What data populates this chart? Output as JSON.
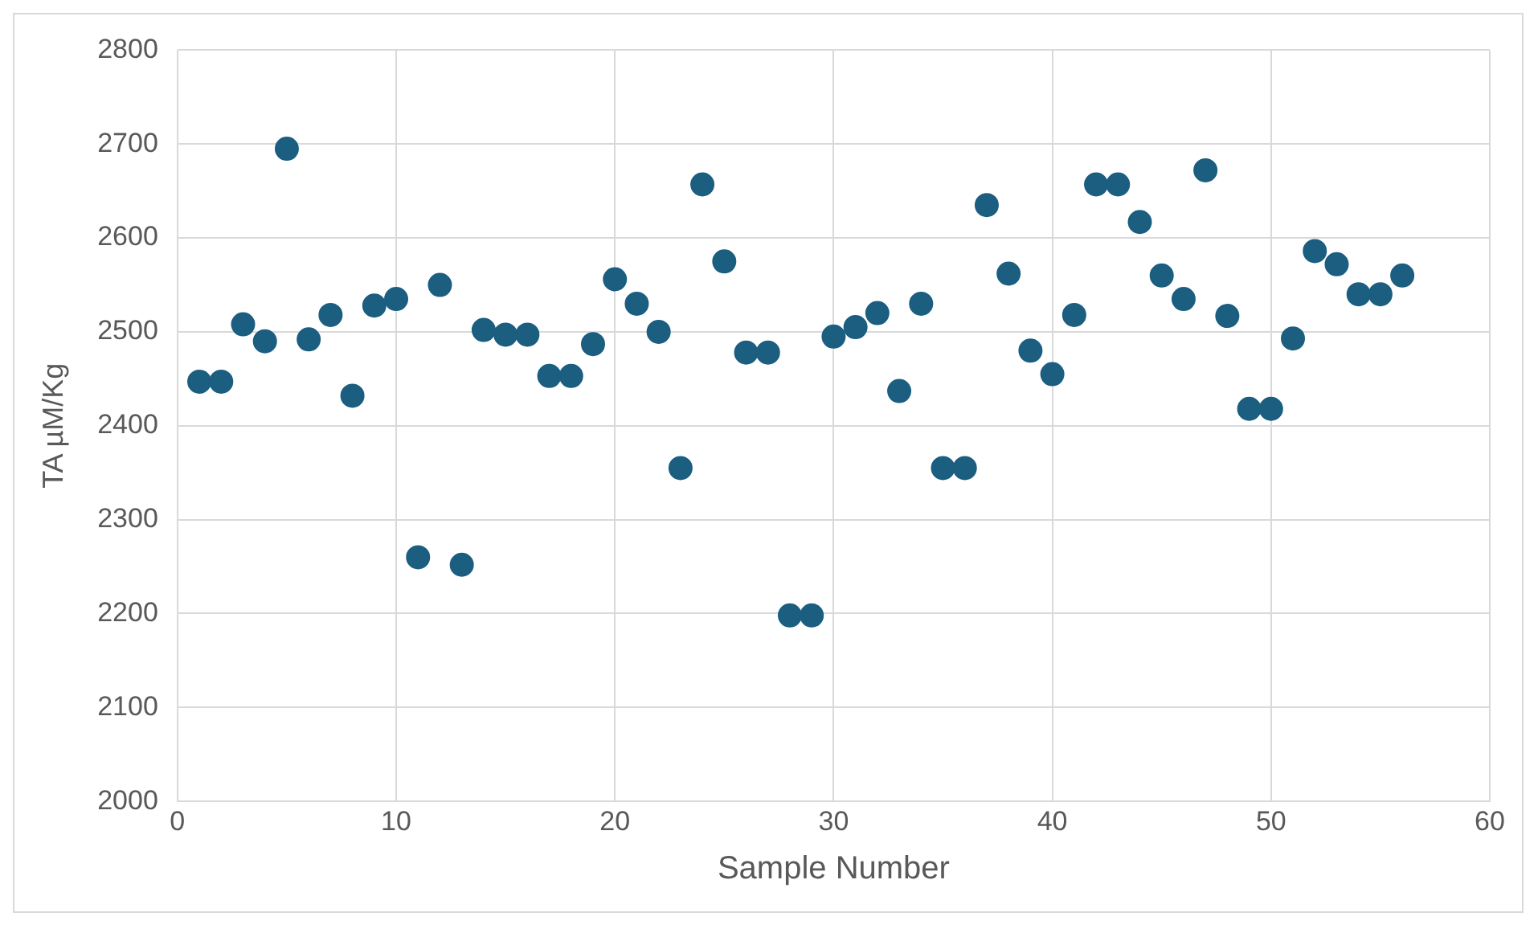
{
  "chart_data": {
    "type": "scatter",
    "xlabel": "Sample Number",
    "ylabel": "TA µM/Kg",
    "x": [
      1,
      2,
      3,
      4,
      5,
      6,
      7,
      8,
      9,
      10,
      11,
      12,
      13,
      14,
      15,
      16,
      17,
      18,
      19,
      20,
      21,
      22,
      23,
      24,
      25,
      26,
      27,
      28,
      29,
      30,
      31,
      32,
      33,
      34,
      35,
      36,
      37,
      38,
      39,
      40,
      41,
      42,
      43,
      44,
      45,
      46,
      47,
      48,
      49,
      50,
      51,
      52,
      53,
      54,
      55,
      56
    ],
    "series": [
      {
        "color": "#1b5e80",
        "values": [
          2447,
          2447,
          2508,
          2490,
          2695,
          2492,
          2518,
          2432,
          2528,
          2535,
          2260,
          2550,
          2252,
          2502,
          2497,
          2497,
          2453,
          2453,
          2487,
          2556,
          2530,
          2500,
          2355,
          2657,
          2575,
          2478,
          2478,
          2198,
          2198,
          2495,
          2505,
          2520,
          2437,
          2530,
          2355,
          2355,
          2635,
          2562,
          2480,
          2455,
          2518,
          2657,
          2657,
          2617,
          2560,
          2535,
          2672,
          2517,
          2418,
          2418,
          2493,
          2586,
          2572,
          2540,
          2540,
          2560
        ]
      }
    ],
    "xlim": [
      0,
      60
    ],
    "xticks": [
      0,
      10,
      20,
      30,
      40,
      50,
      60
    ],
    "ylim": [
      2000,
      2800
    ],
    "yticks": [
      2000,
      2100,
      2200,
      2300,
      2400,
      2500,
      2600,
      2700,
      2800
    ],
    "grid": true,
    "legend": false,
    "marker": "circle"
  }
}
